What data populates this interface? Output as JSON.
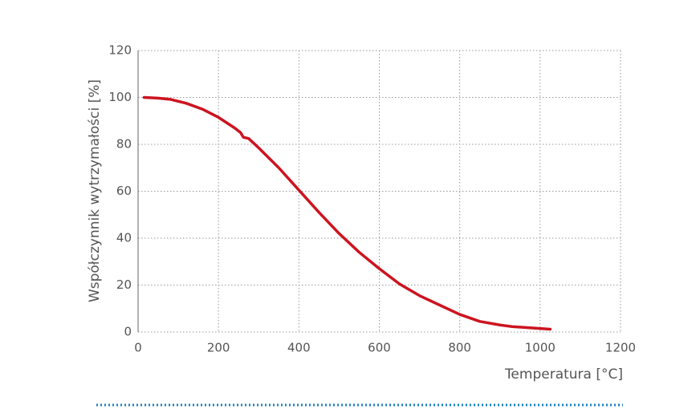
{
  "chart_data": {
    "type": "line",
    "x_label": "Temperatura [°C]",
    "y_label": "Współczynnik wytrzymałości [%]",
    "series": [
      {
        "color": "#cc1420",
        "x": [
          15,
          50,
          80,
          120,
          160,
          200,
          240,
          255,
          262,
          275,
          300,
          350,
          400,
          450,
          500,
          550,
          600,
          650,
          700,
          750,
          800,
          850,
          900,
          930,
          1000,
          1025
        ],
        "values": [
          100,
          99.7,
          99.2,
          97.5,
          95,
          91.5,
          87,
          85,
          83,
          82.5,
          78.5,
          70,
          60.5,
          51,
          42,
          34,
          27,
          20.5,
          15.5,
          11.5,
          7.5,
          4.5,
          3,
          2.3,
          1.5,
          1.2
        ]
      }
    ],
    "xlim": [
      0,
      1200
    ],
    "xticks": [
      0,
      200,
      400,
      600,
      800,
      1000,
      1200
    ],
    "ylim": [
      0,
      120
    ],
    "yticks": [
      0,
      20,
      40,
      60,
      80,
      100,
      120
    ],
    "grid": true
  }
}
